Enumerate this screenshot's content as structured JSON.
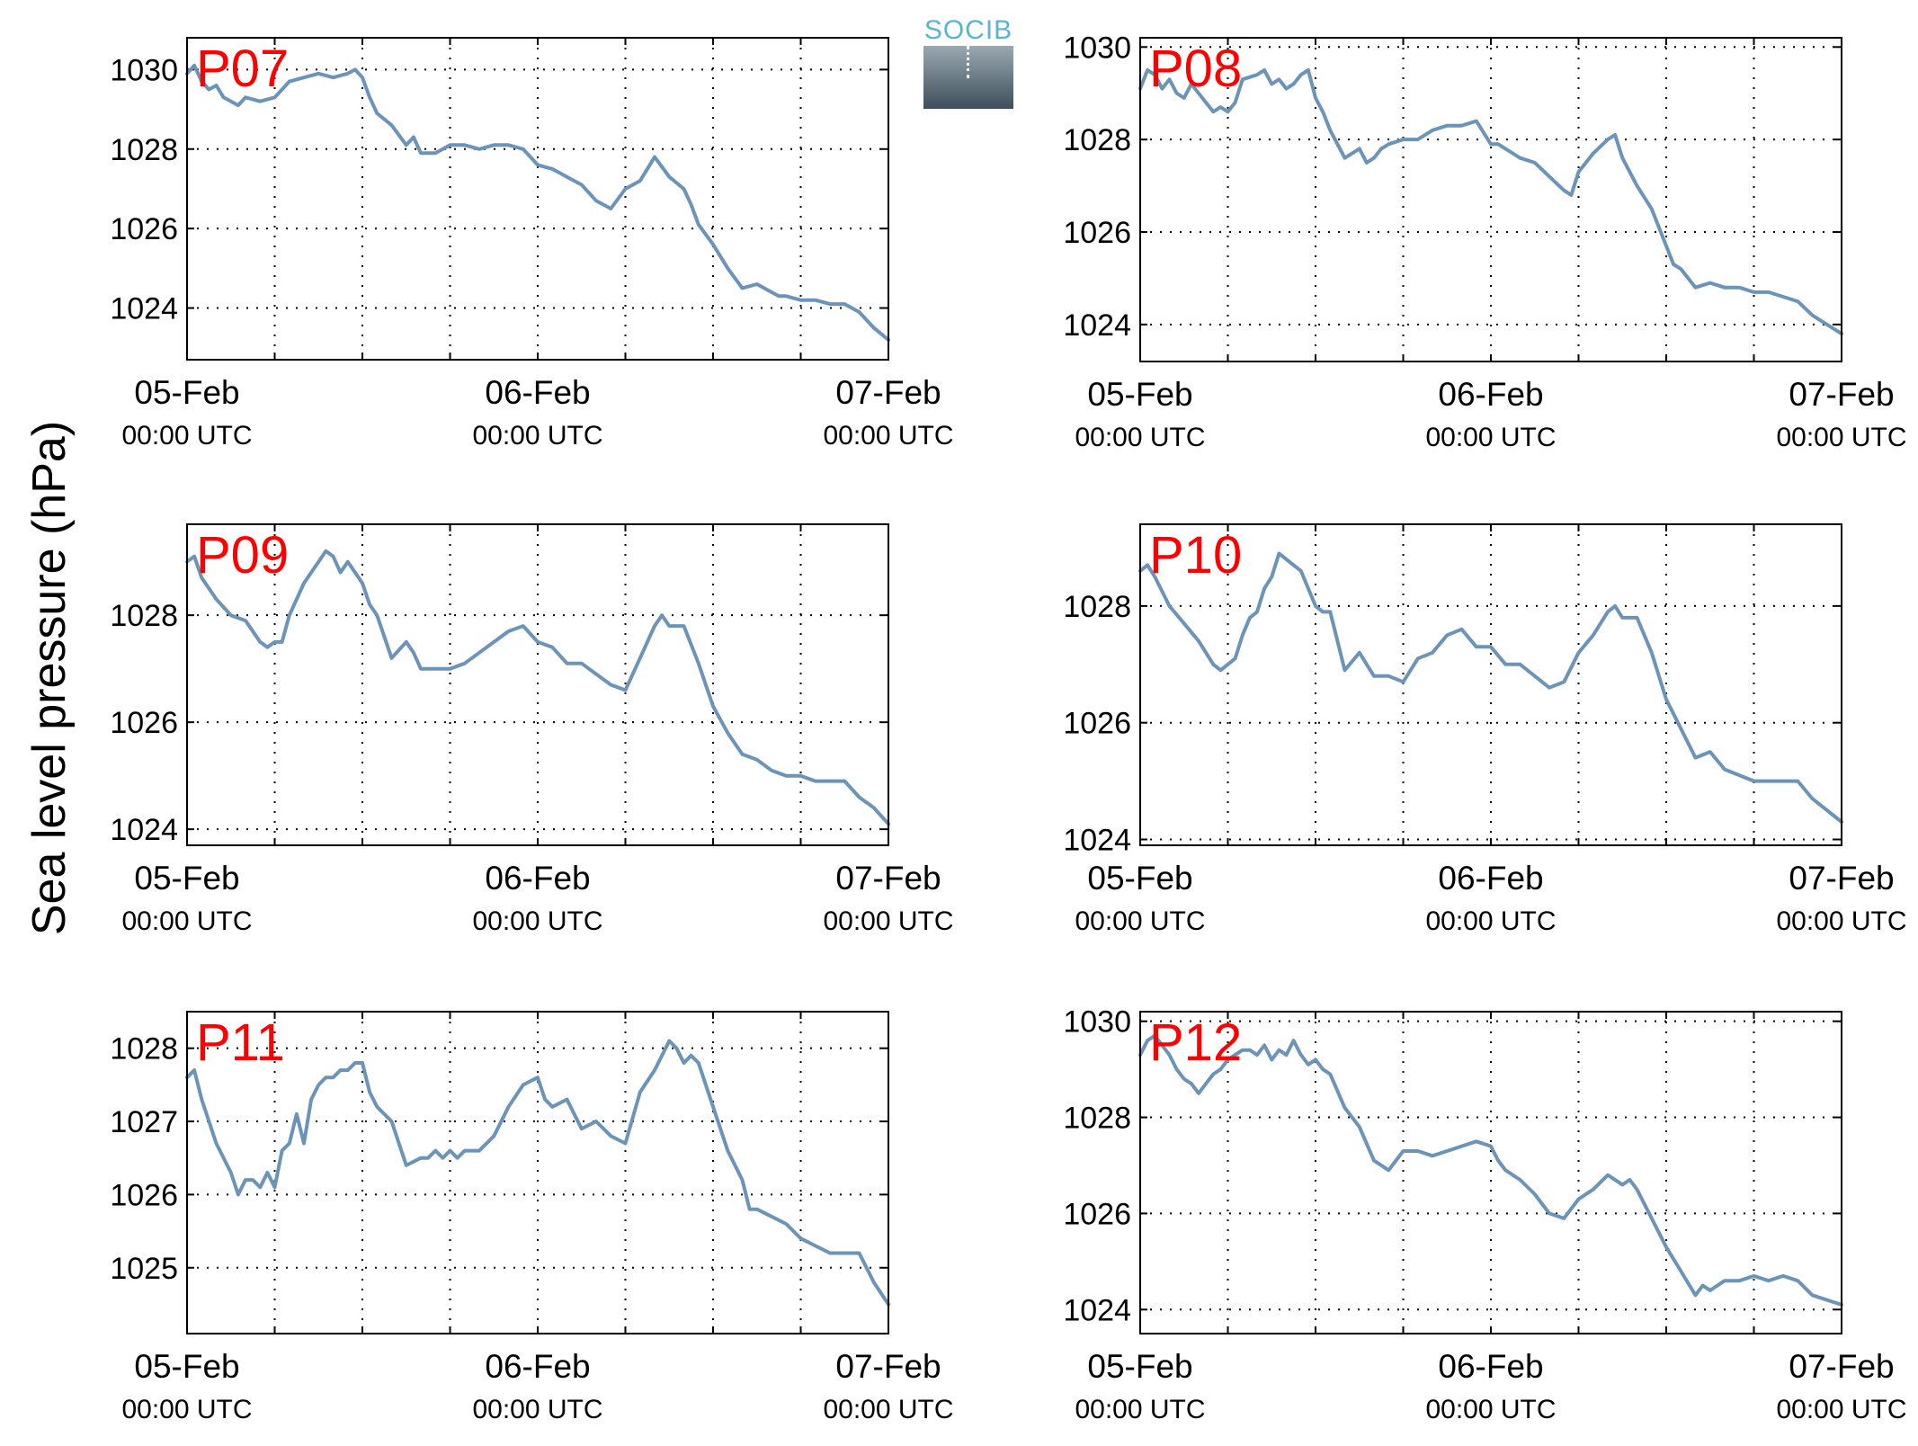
{
  "figure": {
    "ylabel": "Sea level pressure (hPa)",
    "logo_text": "SOCIB"
  },
  "colors": {
    "line": "#6b94b8",
    "station_label": "#ff0000",
    "axes": "#000000",
    "grid": "#000000"
  },
  "chart_data": [
    {
      "type": "line",
      "title": "P07",
      "x_ticks": [
        "05-Feb",
        "06-Feb",
        "07-Feb"
      ],
      "x_tick_sub": [
        "00:00 UTC",
        "00:00 UTC",
        "00:00 UTC"
      ],
      "xlim_hours": [
        0,
        48
      ],
      "ylim": [
        1022.7,
        1030.8
      ],
      "yticks": [
        1024,
        1026,
        1028,
        1030
      ],
      "grid": true,
      "series": [
        {
          "x_hours": [
            0,
            0.5,
            1,
            1.5,
            2,
            2.5,
            3,
            3.5,
            4,
            5,
            6,
            7,
            8,
            9,
            10,
            11,
            11.5,
            12,
            12.5,
            13,
            14,
            15,
            15.5,
            16,
            17,
            18,
            19,
            20,
            21,
            22,
            23,
            24,
            25,
            26,
            27,
            28,
            29,
            30,
            31,
            31.5,
            32,
            33,
            34,
            34.5,
            35,
            36,
            37,
            38,
            39,
            40,
            40.5,
            41,
            42,
            43,
            44,
            45,
            46,
            47,
            48
          ],
          "values": [
            1029.9,
            1030.1,
            1029.7,
            1029.5,
            1029.6,
            1029.3,
            1029.2,
            1029.1,
            1029.3,
            1029.2,
            1029.3,
            1029.7,
            1029.8,
            1029.9,
            1029.8,
            1029.9,
            1030.0,
            1029.8,
            1029.3,
            1028.9,
            1028.6,
            1028.1,
            1028.3,
            1027.9,
            1027.9,
            1028.1,
            1028.1,
            1028.0,
            1028.1,
            1028.1,
            1028.0,
            1027.6,
            1027.5,
            1027.3,
            1027.1,
            1026.7,
            1026.5,
            1027.0,
            1027.2,
            1027.5,
            1027.8,
            1027.3,
            1027.0,
            1026.6,
            1026.1,
            1025.6,
            1025.0,
            1024.5,
            1024.6,
            1024.4,
            1024.3,
            1024.3,
            1024.2,
            1024.2,
            1024.1,
            1024.1,
            1023.9,
            1023.5,
            1023.2
          ]
        }
      ]
    },
    {
      "type": "line",
      "title": "P08",
      "x_ticks": [
        "05-Feb",
        "06-Feb",
        "07-Feb"
      ],
      "x_tick_sub": [
        "00:00 UTC",
        "00:00 UTC",
        "00:00 UTC"
      ],
      "xlim_hours": [
        0,
        48
      ],
      "ylim": [
        1023.2,
        1030.2
      ],
      "yticks": [
        1024,
        1026,
        1028,
        1030
      ],
      "grid": true,
      "series": [
        {
          "x_hours": [
            0,
            0.5,
            1,
            1.5,
            2,
            2.5,
            3,
            3.5,
            4,
            4.5,
            5,
            5.5,
            6,
            6.5,
            7,
            8,
            8.5,
            9,
            9.5,
            10,
            10.5,
            11,
            11.5,
            12,
            12.5,
            13,
            14,
            15,
            15.5,
            16,
            16.5,
            17,
            18,
            19,
            20,
            21,
            22,
            23,
            24,
            24.5,
            25,
            26,
            27,
            28,
            29,
            29.5,
            30,
            31,
            32,
            32.5,
            33,
            34,
            35,
            36,
            36.5,
            37,
            38,
            39,
            40,
            41,
            42,
            43,
            44,
            45,
            46,
            47,
            48
          ],
          "values": [
            1029.1,
            1029.5,
            1029.4,
            1029.1,
            1029.3,
            1029.0,
            1028.9,
            1029.2,
            1029.0,
            1028.8,
            1028.6,
            1028.7,
            1028.6,
            1028.8,
            1029.3,
            1029.4,
            1029.5,
            1029.2,
            1029.3,
            1029.1,
            1029.2,
            1029.4,
            1029.5,
            1028.9,
            1028.6,
            1028.2,
            1027.6,
            1027.8,
            1027.5,
            1027.6,
            1027.8,
            1027.9,
            1028.0,
            1028.0,
            1028.2,
            1028.3,
            1028.3,
            1028.4,
            1027.9,
            1027.9,
            1027.8,
            1027.6,
            1027.5,
            1027.2,
            1026.9,
            1026.8,
            1027.3,
            1027.7,
            1028.0,
            1028.1,
            1027.6,
            1027.0,
            1026.5,
            1025.7,
            1025.3,
            1025.2,
            1024.8,
            1024.9,
            1024.8,
            1024.8,
            1024.7,
            1024.7,
            1024.6,
            1024.5,
            1024.2,
            1024.0,
            1023.8
          ]
        }
      ]
    },
    {
      "type": "line",
      "title": "P09",
      "x_ticks": [
        "05-Feb",
        "06-Feb",
        "07-Feb"
      ],
      "x_tick_sub": [
        "00:00 UTC",
        "00:00 UTC",
        "00:00 UTC"
      ],
      "xlim_hours": [
        0,
        48
      ],
      "ylim": [
        1023.7,
        1029.7
      ],
      "yticks": [
        1024,
        1026,
        1028
      ],
      "grid": true,
      "series": [
        {
          "x_hours": [
            0,
            0.5,
            1,
            2,
            3,
            4,
            5,
            5.5,
            6,
            6.5,
            7,
            8,
            8.5,
            9,
            9.5,
            10,
            10.5,
            11,
            11.5,
            12,
            12.5,
            13,
            14,
            15,
            15.5,
            16,
            17,
            18,
            19,
            20,
            21,
            22,
            23,
            24,
            25,
            26,
            27,
            28,
            29,
            30,
            31,
            32,
            32.5,
            33,
            34,
            35,
            36,
            37,
            38,
            39,
            40,
            41,
            42,
            43,
            44,
            45,
            46,
            47,
            48
          ],
          "values": [
            1029.0,
            1029.1,
            1028.7,
            1028.3,
            1028.0,
            1027.9,
            1027.5,
            1027.4,
            1027.5,
            1027.5,
            1028.0,
            1028.6,
            1028.8,
            1029.0,
            1029.2,
            1029.1,
            1028.8,
            1029.0,
            1028.8,
            1028.6,
            1028.2,
            1028.0,
            1027.2,
            1027.5,
            1027.3,
            1027.0,
            1027.0,
            1027.0,
            1027.1,
            1027.3,
            1027.5,
            1027.7,
            1027.8,
            1027.5,
            1027.4,
            1027.1,
            1027.1,
            1026.9,
            1026.7,
            1026.6,
            1027.2,
            1027.8,
            1028.0,
            1027.8,
            1027.8,
            1027.1,
            1026.3,
            1025.8,
            1025.4,
            1025.3,
            1025.1,
            1025.0,
            1025.0,
            1024.9,
            1024.9,
            1024.9,
            1024.6,
            1024.4,
            1024.1
          ]
        }
      ]
    },
    {
      "type": "line",
      "title": "P10",
      "x_ticks": [
        "05-Feb",
        "06-Feb",
        "07-Feb"
      ],
      "x_tick_sub": [
        "00:00 UTC",
        "00:00 UTC",
        "00:00 UTC"
      ],
      "xlim_hours": [
        0,
        48
      ],
      "ylim": [
        1023.9,
        1029.4
      ],
      "yticks": [
        1024,
        1026,
        1028
      ],
      "grid": true,
      "series": [
        {
          "x_hours": [
            0,
            0.5,
            1,
            2,
            3,
            4,
            5,
            5.5,
            6,
            6.5,
            7,
            7.5,
            8,
            8.5,
            9,
            9.5,
            10,
            10.5,
            11,
            11.5,
            12,
            12.5,
            13,
            14,
            15,
            15.5,
            16,
            17,
            18,
            19,
            20,
            21,
            22,
            23,
            24,
            25,
            26,
            27,
            28,
            29,
            30,
            31,
            32,
            32.5,
            33,
            34,
            35,
            36,
            37,
            38,
            39,
            40,
            41,
            42,
            43,
            44,
            45,
            46,
            47,
            48
          ],
          "values": [
            1028.6,
            1028.7,
            1028.5,
            1028.0,
            1027.7,
            1027.4,
            1027.0,
            1026.9,
            1027.0,
            1027.1,
            1027.5,
            1027.8,
            1027.9,
            1028.3,
            1028.5,
            1028.9,
            1028.8,
            1028.7,
            1028.6,
            1028.3,
            1028.0,
            1027.9,
            1027.9,
            1026.9,
            1027.2,
            1027.0,
            1026.8,
            1026.8,
            1026.7,
            1027.1,
            1027.2,
            1027.5,
            1027.6,
            1027.3,
            1027.3,
            1027.0,
            1027.0,
            1026.8,
            1026.6,
            1026.7,
            1027.2,
            1027.5,
            1027.9,
            1028.0,
            1027.8,
            1027.8,
            1027.2,
            1026.4,
            1025.9,
            1025.4,
            1025.5,
            1025.2,
            1025.1,
            1025.0,
            1025.0,
            1025.0,
            1025.0,
            1024.7,
            1024.5,
            1024.3
          ]
        }
      ]
    },
    {
      "type": "line",
      "title": "P11",
      "x_ticks": [
        "05-Feb",
        "06-Feb",
        "07-Feb"
      ],
      "x_tick_sub": [
        "00:00 UTC",
        "00:00 UTC",
        "00:00 UTC"
      ],
      "xlim_hours": [
        0,
        48
      ],
      "ylim": [
        1024.1,
        1028.5
      ],
      "yticks": [
        1025,
        1026,
        1027,
        1028
      ],
      "grid": true,
      "series": [
        {
          "x_hours": [
            0,
            0.5,
            1,
            2,
            3,
            3.5,
            4,
            4.5,
            5,
            5.5,
            6,
            6.5,
            7,
            7.5,
            8,
            8.5,
            9,
            9.5,
            10,
            10.5,
            11,
            11.5,
            12,
            12.5,
            13,
            14,
            15,
            16,
            16.5,
            17,
            17.5,
            18,
            18.5,
            19,
            20,
            21,
            22,
            23,
            24,
            24.5,
            25,
            26,
            26.5,
            27,
            28,
            29,
            30,
            31,
            32,
            33,
            33.5,
            34,
            34.5,
            35,
            36,
            37,
            38,
            38.5,
            39,
            40,
            41,
            42,
            43,
            44,
            45,
            46,
            47,
            48
          ],
          "values": [
            1027.6,
            1027.7,
            1027.3,
            1026.7,
            1026.3,
            1026.0,
            1026.2,
            1026.2,
            1026.1,
            1026.3,
            1026.1,
            1026.6,
            1026.7,
            1027.1,
            1026.7,
            1027.3,
            1027.5,
            1027.6,
            1027.6,
            1027.7,
            1027.7,
            1027.8,
            1027.8,
            1027.4,
            1027.2,
            1027.0,
            1026.4,
            1026.5,
            1026.5,
            1026.6,
            1026.5,
            1026.6,
            1026.5,
            1026.6,
            1026.6,
            1026.8,
            1027.2,
            1027.5,
            1027.6,
            1027.3,
            1027.2,
            1027.3,
            1027.1,
            1026.9,
            1027.0,
            1026.8,
            1026.7,
            1027.4,
            1027.7,
            1028.1,
            1028.0,
            1027.8,
            1027.9,
            1027.8,
            1027.2,
            1026.6,
            1026.2,
            1025.8,
            1025.8,
            1025.7,
            1025.6,
            1025.4,
            1025.3,
            1025.2,
            1025.2,
            1025.2,
            1024.8,
            1024.5
          ]
        }
      ]
    },
    {
      "type": "line",
      "title": "P12",
      "x_ticks": [
        "05-Feb",
        "06-Feb",
        "07-Feb"
      ],
      "x_tick_sub": [
        "00:00 UTC",
        "00:00 UTC",
        "00:00 UTC"
      ],
      "xlim_hours": [
        0,
        48
      ],
      "ylim": [
        1023.5,
        1030.2
      ],
      "yticks": [
        1024,
        1026,
        1028,
        1030
      ],
      "grid": true,
      "series": [
        {
          "x_hours": [
            0,
            0.5,
            1,
            1.5,
            2,
            2.5,
            3,
            3.5,
            4,
            4.5,
            5,
            5.5,
            6,
            6.5,
            7,
            7.5,
            8,
            8.5,
            9,
            9.5,
            10,
            10.5,
            11,
            11.5,
            12,
            12.5,
            13,
            14,
            15,
            16,
            17,
            18,
            19,
            20,
            21,
            22,
            23,
            24,
            24.5,
            25,
            26,
            27,
            28,
            29,
            30,
            31,
            32,
            33,
            33.5,
            34,
            35,
            36,
            37,
            38,
            38.5,
            39,
            40,
            41,
            42,
            43,
            44,
            45,
            46,
            47,
            48
          ],
          "values": [
            1029.3,
            1029.6,
            1029.7,
            1029.5,
            1029.3,
            1029.0,
            1028.8,
            1028.7,
            1028.5,
            1028.7,
            1028.9,
            1029.0,
            1029.2,
            1029.3,
            1029.4,
            1029.4,
            1029.3,
            1029.5,
            1029.2,
            1029.4,
            1029.3,
            1029.6,
            1029.3,
            1029.1,
            1029.2,
            1029.0,
            1028.9,
            1028.2,
            1027.8,
            1027.1,
            1026.9,
            1027.3,
            1027.3,
            1027.2,
            1027.3,
            1027.4,
            1027.5,
            1027.4,
            1027.1,
            1026.9,
            1026.7,
            1026.4,
            1026.0,
            1025.9,
            1026.3,
            1026.5,
            1026.8,
            1026.6,
            1026.7,
            1026.5,
            1025.9,
            1025.3,
            1024.8,
            1024.3,
            1024.5,
            1024.4,
            1024.6,
            1024.6,
            1024.7,
            1024.6,
            1024.7,
            1024.6,
            1024.3,
            1024.2,
            1024.1
          ]
        }
      ]
    }
  ]
}
